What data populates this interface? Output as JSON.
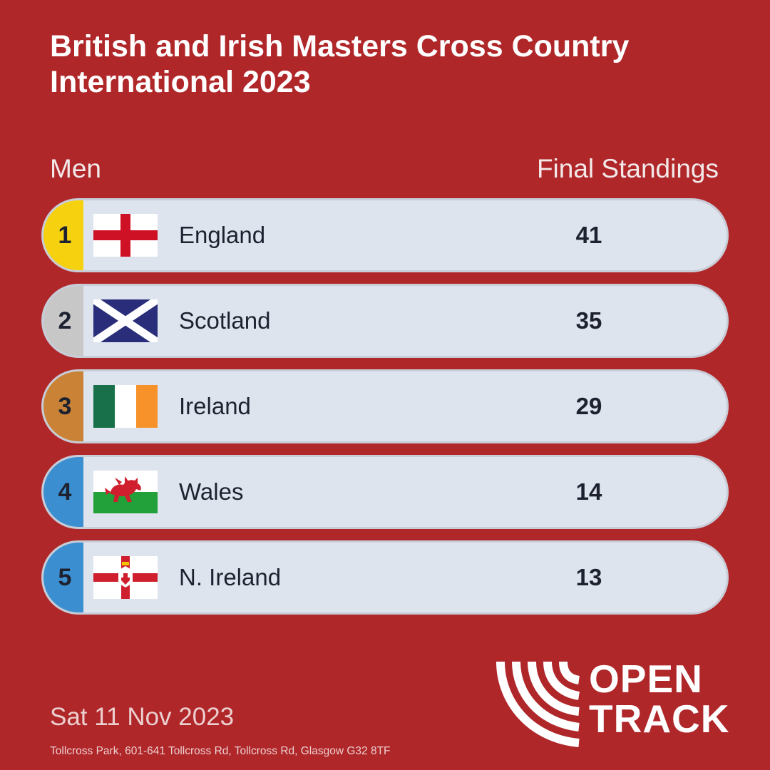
{
  "header": {
    "title": "British and Irish Masters Cross Country International 2023",
    "category": "Men",
    "standings_label": "Final Standings"
  },
  "colors": {
    "background": "#b0272a",
    "row_background": "#dde4ee",
    "rank_1": "#f6d10f",
    "rank_2": "#c7c7c7",
    "rank_3": "#c98236",
    "rank_4_5": "#3b8fd0"
  },
  "standings": [
    {
      "rank": "1",
      "country": "England",
      "score": "41",
      "flag_icon": "england-flag-icon"
    },
    {
      "rank": "2",
      "country": "Scotland",
      "score": "35",
      "flag_icon": "scotland-flag-icon"
    },
    {
      "rank": "3",
      "country": "Ireland",
      "score": "29",
      "flag_icon": "ireland-flag-icon"
    },
    {
      "rank": "4",
      "country": "Wales",
      "score": "14",
      "flag_icon": "wales-flag-icon"
    },
    {
      "rank": "5",
      "country": "N. Ireland",
      "score": "13",
      "flag_icon": "northern-ireland-flag-icon"
    }
  ],
  "footer": {
    "date": "Sat 11 Nov 2023",
    "venue": "Tollcross Park, 601-641 Tollcross Rd, Tollcross Rd, Glasgow G32 8TF"
  },
  "logo": {
    "line1": "OPEN",
    "line2": "TRACK"
  }
}
